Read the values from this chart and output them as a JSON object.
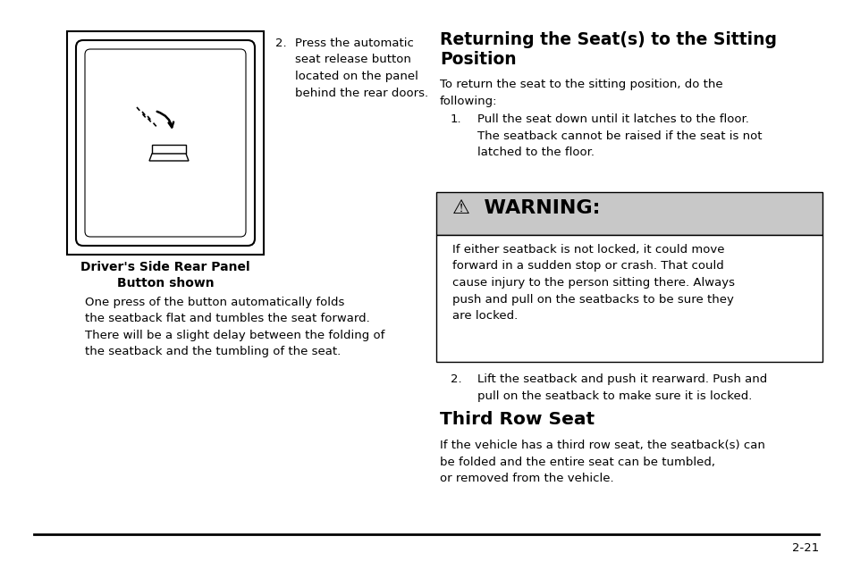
{
  "bg_color": "#ffffff",
  "item2_label": "2.",
  "item2_text": "Press the automatic\nseat release button\nlocated on the panel\nbehind the rear doors.",
  "caption_line1": "Driver's Side Rear Panel",
  "caption_line2": "Button shown",
  "body_left": "One press of the button automatically folds\nthe seatback flat and tumbles the seat forward.\nThere will be a slight delay between the folding of\nthe seatback and the tumbling of the seat.",
  "right_heading_line1": "Returning the Seat(s) to the Sitting",
  "right_heading_line2": "Position",
  "right_intro": "To return the seat to the sitting position, do the\nfollowing:",
  "item1_label": "1.",
  "item1_text": "Pull the seat down until it latches to the floor.\nThe seatback cannot be raised if the seat is not\nlatched to the floor.",
  "warning_header": "⚠  WARNING:",
  "warning_body_line1": "If either seatback is not locked, it could move",
  "warning_body_line2": "forward in a sudden stop or crash. That could",
  "warning_body_line3": "cause injury to the person sitting there. Always",
  "warning_body_line4": "push and pull on the seatbacks to be sure they",
  "warning_body_line5": "are locked.",
  "item2b_label": "2.",
  "item2b_text": "Lift the seatback and push it rearward. Push and\npull on the seatback to make sure it is locked.",
  "section_heading": "Third Row Seat",
  "section_body": "If the vehicle has a third row seat, the seatback(s) can\nbe folded and the entire seat can be tumbled,\nor removed from the vehicle.",
  "page_number": "2-21",
  "warning_bg": "#c8c8c8",
  "warning_body_bg": "#ffffff",
  "font_size_body": 9.5,
  "font_size_heading": 13.5,
  "font_size_section": 14.5,
  "font_size_warning_header": 16,
  "font_size_caption": 10,
  "font_size_page": 9.5
}
